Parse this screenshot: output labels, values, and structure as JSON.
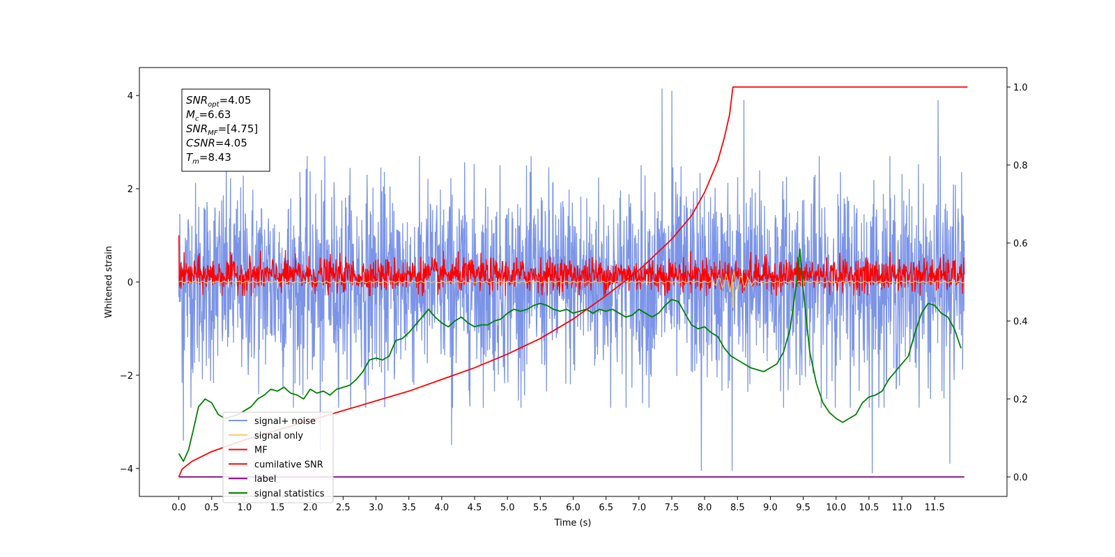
{
  "chart_data": {
    "type": "line",
    "title": "",
    "xlabel": "Time (s)",
    "ylabel": "Whitened strain",
    "x_range": [
      -0.6,
      12.6
    ],
    "y_left_range": [
      -4.6,
      4.6
    ],
    "y_right_range": [
      -0.05,
      1.05
    ],
    "x_ticks": [
      0.0,
      0.5,
      1.0,
      1.5,
      2.0,
      2.5,
      3.0,
      3.5,
      4.0,
      4.5,
      5.0,
      5.5,
      6.0,
      6.5,
      7.0,
      7.5,
      8.0,
      8.5,
      9.0,
      9.5,
      10.0,
      10.5,
      11.0,
      11.5
    ],
    "x_tick_labels": [
      "0.0",
      "0.5",
      "1.0",
      "1.5",
      "2.0",
      "2.5",
      "3.0",
      "3.5",
      "4.0",
      "4.5",
      "5.0",
      "5.5",
      "6.0",
      "6.5",
      "7.0",
      "7.5",
      "8.0",
      "8.5",
      "9.0",
      "9.5",
      "10.0",
      "10.5",
      "11.0",
      "11.5"
    ],
    "y_left_ticks": [
      -4,
      -2,
      0,
      2,
      4
    ],
    "y_left_tick_labels": [
      "−4",
      "−2",
      "0",
      "2",
      "4"
    ],
    "y_right_ticks": [
      0.0,
      0.2,
      0.4,
      0.6,
      0.8,
      1.0
    ],
    "y_right_tick_labels": [
      "0.0",
      "0.2",
      "0.4",
      "0.6",
      "0.8",
      "1.0"
    ],
    "legend_position": "lower-left",
    "grid": false,
    "series": [
      {
        "name": "signal+ noise",
        "color": "#7b94e8",
        "axis": "left",
        "x_start": 0.0,
        "x_end": 11.95,
        "approx_level": 0.0,
        "typical_range": [
          -2.4,
          2.4
        ],
        "extreme_range": [
          -4.1,
          4.15
        ],
        "spikes": [
          [
            0.07,
            -3.4
          ],
          [
            2.15,
            -3.6
          ],
          [
            4.15,
            -3.5
          ],
          [
            7.35,
            4.15
          ],
          [
            7.5,
            4.1
          ],
          [
            7.95,
            -4.05
          ],
          [
            8.42,
            -4.05
          ],
          [
            8.6,
            3.9
          ],
          [
            10.55,
            -4.1
          ],
          [
            11.55,
            3.9
          ],
          [
            11.73,
            -3.9
          ]
        ]
      },
      {
        "name": "signal only",
        "color": "#f5c96b",
        "axis": "left",
        "x_start": 0.0,
        "x_end": 11.95,
        "approx_level": 0.0,
        "notable": [
          [
            8.43,
            -0.55
          ],
          [
            8.43,
            0.0
          ]
        ]
      },
      {
        "name": "MF",
        "color": "#ff0000",
        "axis": "left",
        "x_start": 0.0,
        "x_end": 11.95,
        "approx_level": 0.0,
        "typical_range": [
          -0.3,
          0.7
        ],
        "start_value": 1.0
      },
      {
        "name": "cumilative SNR",
        "color": "#ff0000",
        "axis": "right",
        "x": [
          0.0,
          0.05,
          0.2,
          0.5,
          1.0,
          1.5,
          2.0,
          2.5,
          3.0,
          3.5,
          4.0,
          4.5,
          5.0,
          5.5,
          6.0,
          6.5,
          7.0,
          7.5,
          7.8,
          8.0,
          8.2,
          8.3,
          8.38,
          8.43,
          12.0
        ],
        "values": [
          0.0,
          0.02,
          0.04,
          0.065,
          0.095,
          0.12,
          0.145,
          0.17,
          0.195,
          0.22,
          0.25,
          0.28,
          0.315,
          0.355,
          0.405,
          0.465,
          0.53,
          0.61,
          0.67,
          0.73,
          0.81,
          0.87,
          0.93,
          1.0,
          1.0
        ]
      },
      {
        "name": "label",
        "color": "#800080",
        "axis": "right",
        "x": [
          0.0,
          11.95
        ],
        "values": [
          0.0,
          0.0
        ]
      },
      {
        "name": "signal statistics",
        "color": "#008000",
        "axis": "right",
        "x": [
          0.0,
          0.07,
          0.15,
          0.22,
          0.3,
          0.4,
          0.5,
          0.6,
          0.7,
          0.8,
          0.9,
          1.0,
          1.1,
          1.2,
          1.3,
          1.4,
          1.5,
          1.6,
          1.7,
          1.8,
          1.9,
          2.0,
          2.1,
          2.2,
          2.3,
          2.4,
          2.5,
          2.6,
          2.7,
          2.8,
          2.9,
          3.0,
          3.1,
          3.2,
          3.3,
          3.4,
          3.5,
          3.6,
          3.7,
          3.8,
          3.9,
          4.0,
          4.1,
          4.2,
          4.3,
          4.4,
          4.5,
          4.6,
          4.7,
          4.8,
          4.9,
          5.0,
          5.1,
          5.2,
          5.3,
          5.4,
          5.5,
          5.6,
          5.7,
          5.8,
          5.9,
          6.0,
          6.1,
          6.2,
          6.3,
          6.4,
          6.5,
          6.6,
          6.7,
          6.8,
          6.9,
          7.0,
          7.1,
          7.2,
          7.3,
          7.4,
          7.5,
          7.6,
          7.7,
          7.8,
          7.9,
          8.0,
          8.1,
          8.2,
          8.3,
          8.4,
          8.5,
          8.6,
          8.7,
          8.8,
          8.9,
          9.0,
          9.1,
          9.2,
          9.3,
          9.4,
          9.45,
          9.5,
          9.6,
          9.7,
          9.8,
          9.9,
          10.0,
          10.1,
          10.2,
          10.3,
          10.4,
          10.5,
          10.6,
          10.7,
          10.8,
          10.9,
          11.0,
          11.1,
          11.2,
          11.3,
          11.4,
          11.5,
          11.6,
          11.7,
          11.8,
          11.9
        ],
        "values": [
          0.06,
          0.04,
          0.07,
          0.12,
          0.18,
          0.2,
          0.19,
          0.16,
          0.15,
          0.155,
          0.16,
          0.17,
          0.18,
          0.2,
          0.21,
          0.225,
          0.22,
          0.23,
          0.215,
          0.21,
          0.2,
          0.225,
          0.215,
          0.22,
          0.21,
          0.225,
          0.23,
          0.235,
          0.25,
          0.27,
          0.3,
          0.305,
          0.3,
          0.31,
          0.35,
          0.355,
          0.37,
          0.39,
          0.41,
          0.43,
          0.41,
          0.395,
          0.385,
          0.4,
          0.41,
          0.395,
          0.385,
          0.39,
          0.39,
          0.4,
          0.405,
          0.42,
          0.43,
          0.425,
          0.43,
          0.44,
          0.445,
          0.44,
          0.43,
          0.425,
          0.43,
          0.42,
          0.425,
          0.43,
          0.42,
          0.43,
          0.425,
          0.43,
          0.42,
          0.41,
          0.415,
          0.43,
          0.42,
          0.41,
          0.42,
          0.44,
          0.455,
          0.45,
          0.42,
          0.39,
          0.38,
          0.385,
          0.37,
          0.36,
          0.33,
          0.31,
          0.3,
          0.29,
          0.28,
          0.275,
          0.27,
          0.28,
          0.29,
          0.32,
          0.38,
          0.5,
          0.585,
          0.48,
          0.32,
          0.24,
          0.19,
          0.165,
          0.15,
          0.14,
          0.15,
          0.16,
          0.19,
          0.205,
          0.21,
          0.22,
          0.25,
          0.27,
          0.29,
          0.31,
          0.37,
          0.42,
          0.445,
          0.44,
          0.42,
          0.41,
          0.38,
          0.33
        ]
      }
    ],
    "annotation_box": {
      "lines": [
        {
          "main": "SNR",
          "sub": "opt",
          "rest": "=4.05"
        },
        {
          "main": "M",
          "sub": "c",
          "rest": "=6.63"
        },
        {
          "main": "SNR",
          "sub": "MF",
          "rest": "=[4.75]"
        },
        {
          "main": "CSNR",
          "sub": "",
          "rest": "=4.05"
        },
        {
          "main": "T",
          "sub": "m",
          "rest": "=8.43"
        }
      ]
    }
  }
}
